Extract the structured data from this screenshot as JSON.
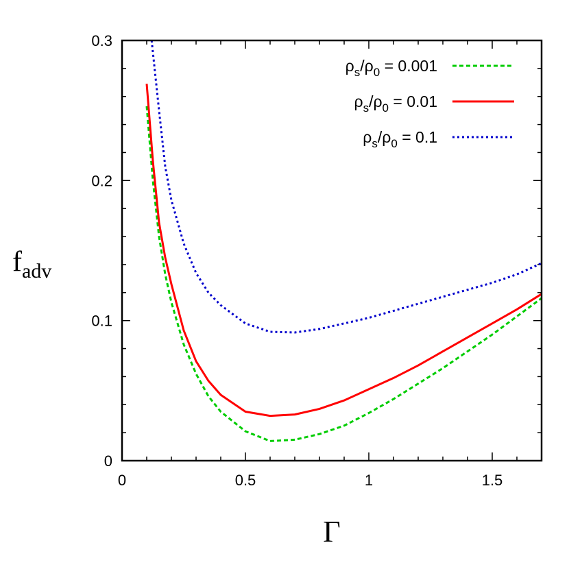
{
  "chart_data": {
    "type": "line",
    "title": "",
    "xlabel": "Γ",
    "ylabel": {
      "main": "f",
      "sub": "adv"
    },
    "xlim": [
      0,
      1.7
    ],
    "ylim": [
      0,
      0.3
    ],
    "xticks": [
      0,
      0.5,
      1,
      1.5
    ],
    "xtick_labels": [
      "0",
      "0.5",
      "1",
      "1.5"
    ],
    "yticks": [
      0,
      0.1,
      0.2,
      0.3
    ],
    "ytick_labels": [
      "0",
      "0.1",
      "0.2",
      "0.3"
    ],
    "grid": false,
    "legend_position": "top-right",
    "series": [
      {
        "name": "ρs/ρ0 = 0.001",
        "label_parts": [
          "ρ",
          "s",
          "/ρ",
          "0",
          " = 0.001"
        ],
        "color": "#00cc00",
        "style": "dashed",
        "x": [
          0.1,
          0.125,
          0.15,
          0.175,
          0.2,
          0.25,
          0.3,
          0.35,
          0.4,
          0.5,
          0.6,
          0.7,
          0.8,
          0.9,
          1.0,
          1.1,
          1.2,
          1.3,
          1.4,
          1.5,
          1.6,
          1.7
        ],
        "y": [
          0.253,
          0.2,
          0.16,
          0.133,
          0.113,
          0.083,
          0.062,
          0.046,
          0.035,
          0.021,
          0.014,
          0.015,
          0.019,
          0.025,
          0.034,
          0.044,
          0.055,
          0.066,
          0.078,
          0.09,
          0.103,
          0.116
        ]
      },
      {
        "name": "ρs/ρ0 = 0.01",
        "label_parts": [
          "ρ",
          "s",
          "/ρ",
          "0",
          " = 0.01"
        ],
        "color": "#ff0000",
        "style": "solid",
        "x": [
          0.1,
          0.125,
          0.15,
          0.175,
          0.2,
          0.25,
          0.3,
          0.35,
          0.4,
          0.5,
          0.6,
          0.7,
          0.8,
          0.9,
          1.0,
          1.1,
          1.2,
          1.3,
          1.4,
          1.5,
          1.6,
          1.7
        ],
        "y": [
          0.269,
          0.214,
          0.17,
          0.145,
          0.126,
          0.093,
          0.071,
          0.057,
          0.047,
          0.035,
          0.032,
          0.033,
          0.037,
          0.043,
          0.051,
          0.059,
          0.068,
          0.078,
          0.088,
          0.098,
          0.108,
          0.119
        ]
      },
      {
        "name": "ρs/ρ0 = 0.1",
        "label_parts": [
          "ρ",
          "s",
          "/ρ",
          "0",
          " = 0.1"
        ],
        "color": "#0000cc",
        "style": "dotted",
        "x": [
          0.12,
          0.15,
          0.175,
          0.2,
          0.25,
          0.3,
          0.35,
          0.4,
          0.5,
          0.6,
          0.7,
          0.8,
          0.9,
          1.0,
          1.1,
          1.2,
          1.3,
          1.4,
          1.5,
          1.6,
          1.7
        ],
        "y": [
          0.3,
          0.25,
          0.21,
          0.186,
          0.155,
          0.134,
          0.12,
          0.111,
          0.098,
          0.092,
          0.0915,
          0.094,
          0.098,
          0.102,
          0.107,
          0.112,
          0.117,
          0.122,
          0.127,
          0.133,
          0.141
        ]
      }
    ]
  }
}
